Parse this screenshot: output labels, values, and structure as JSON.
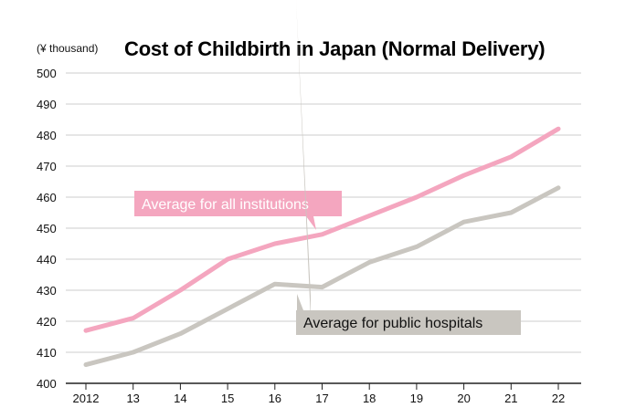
{
  "chart_data": {
    "type": "line",
    "title": "Cost of Childbirth in Japan (Normal Delivery)",
    "unit_label": "(¥ thousand)",
    "categories": [
      "2012",
      "13",
      "14",
      "15",
      "16",
      "17",
      "18",
      "19",
      "20",
      "21",
      "22"
    ],
    "ylim": [
      400,
      500
    ],
    "yticks": [
      400,
      410,
      420,
      430,
      440,
      450,
      460,
      470,
      480,
      490,
      500
    ],
    "grid": true,
    "series": [
      {
        "name": "Average for all institutions",
        "color": "#f4a6bf",
        "label_text_color": "#ffffff",
        "values": [
          417,
          421,
          430,
          440,
          445,
          448,
          454,
          460,
          467,
          473,
          482
        ]
      },
      {
        "name": "Average for public hospitals",
        "color": "#c9c6c0",
        "label_text_color": "#111111",
        "values": [
          406,
          410,
          416,
          424,
          432,
          431,
          439,
          444,
          452,
          455,
          463
        ]
      }
    ]
  }
}
